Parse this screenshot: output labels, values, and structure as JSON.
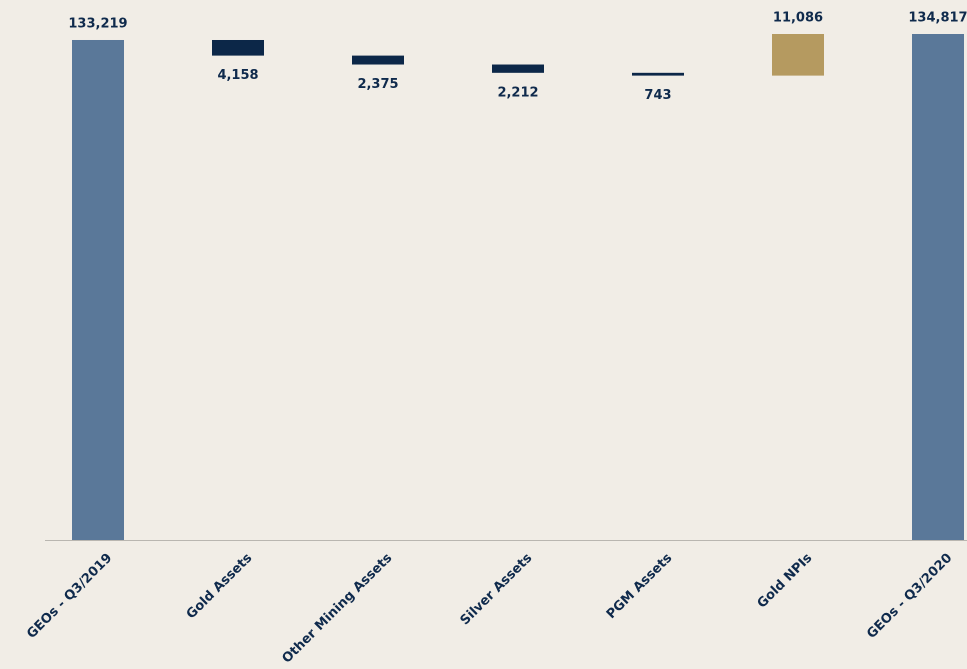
{
  "chart_data": {
    "type": "waterfall",
    "categories": [
      "GEOs - Q3/2019",
      "Gold Assets",
      "Other Mining Assets",
      "Silver Assets",
      "PGM Assets",
      "Gold NPIs",
      "GEOs - Q3/2020"
    ],
    "values": [
      133219,
      -4158,
      -2375,
      -2212,
      -743,
      11086,
      134817
    ],
    "value_labels": [
      "133,219",
      "4,158",
      "2,375",
      "2,212",
      "743",
      "11,086",
      "134,817"
    ],
    "colors": {
      "total": "#5a7899",
      "decrease": "#0c2748",
      "increase": "#b59a60"
    }
  }
}
